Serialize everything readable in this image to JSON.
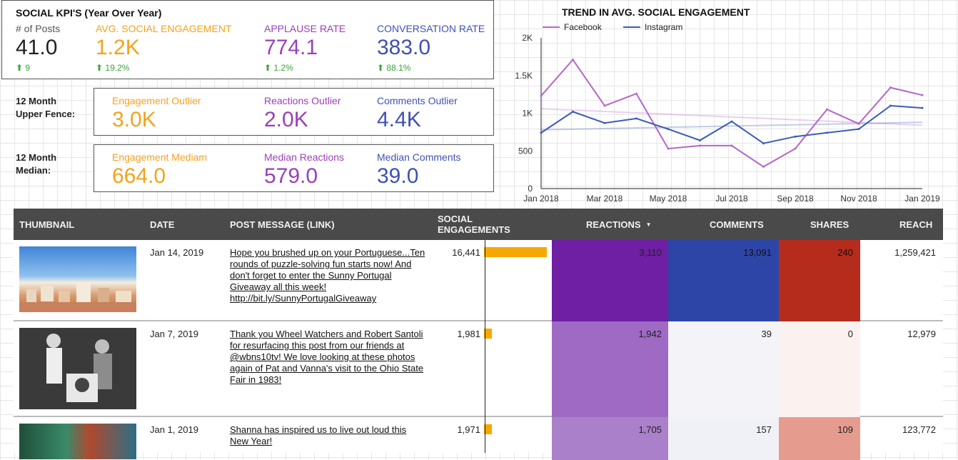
{
  "kpi": {
    "title": "SOCIAL KPI'S (Year Over Year)",
    "metrics": [
      {
        "label": "# of Posts",
        "value": "41.0",
        "delta": "9"
      },
      {
        "label": "AVG. SOCIAL ENGAGEMENT",
        "value": "1.2K",
        "delta": "19.2%"
      },
      {
        "label": "APPLAUSE RATE",
        "value": "774.1",
        "delta": "1.2%"
      },
      {
        "label": "CONVERSATION RATE",
        "value": "383.0",
        "delta": "88.1%"
      }
    ]
  },
  "upper_fence": {
    "label_line1": "12 Month",
    "label_line2": "Upper Fence:",
    "metrics": [
      {
        "label": "Engagement Outlier",
        "value": "3.0K"
      },
      {
        "label": "Reactions Outlier",
        "value": "2.0K"
      },
      {
        "label": "Comments Outlier",
        "value": "4.4K"
      }
    ]
  },
  "median": {
    "label_line1": "12 Month",
    "label_line2": "Median:",
    "metrics": [
      {
        "label": "Engagement Mediam",
        "value": "664.0"
      },
      {
        "label": "Median Reactions",
        "value": "579.0"
      },
      {
        "label": "Median Comments",
        "value": "39.0"
      }
    ]
  },
  "chart_data": {
    "type": "line",
    "title": "TREND IN AVG. SOCIAL ENGAGEMENT",
    "ylim": [
      0,
      2000
    ],
    "yticks": [
      "0",
      "500",
      "1K",
      "1.5K",
      "2K"
    ],
    "xticks": [
      "Jan 2018",
      "Mar 2018",
      "May 2018",
      "Jul 2018",
      "Sep 2018",
      "Nov 2018",
      "Jan 2019"
    ],
    "x": [
      "Jan 2018",
      "Feb 2018",
      "Mar 2018",
      "Apr 2018",
      "May 2018",
      "Jun 2018",
      "Jul 2018",
      "Aug 2018",
      "Sep 2018",
      "Oct 2018",
      "Nov 2018",
      "Dec 2018",
      "Jan 2019"
    ],
    "legend_position": "top-left",
    "series": [
      {
        "name": "Facebook",
        "color": "#b565c8",
        "values": [
          1230,
          1710,
          1100,
          1260,
          530,
          570,
          570,
          290,
          530,
          1050,
          860,
          1340,
          1240
        ],
        "trend": [
          1060,
          840
        ]
      },
      {
        "name": "Instagram",
        "color": "#3b5bb5",
        "values": [
          740,
          1020,
          870,
          930,
          790,
          640,
          890,
          600,
          690,
          740,
          790,
          1100,
          1070
        ],
        "trend": [
          780,
          880
        ]
      }
    ]
  },
  "table": {
    "headers": {
      "thumbnail": "THUMBNAIL",
      "date": "DATE",
      "message": "POST MESSAGE (LINK)",
      "engagements_1": "SOCIAL",
      "engagements_2": "ENGAGEMENTS",
      "reactions": "REACTIONS",
      "sort_arrow": "▼",
      "comments": "COMMENTS",
      "shares": "SHARES",
      "reach": "REACH"
    },
    "rows": [
      {
        "date": "Jan 14, 2019",
        "message": "Hope you brushed up on your Portuguese...Ten rounds of puzzle-solving fun starts now! And don't forget to enter the Sunny Portugal Giveaway all this week! http://bit.ly/SunnyPortugalGiveaway",
        "engagements": "16,441",
        "eng_value": 16441,
        "reactions": "3,110",
        "comments": "13,091",
        "shares": "240",
        "reach": "1,259,421",
        "reactions_color": "#6e1fa3",
        "comments_color": "#2e45a8",
        "shares_color": "#b52b1c"
      },
      {
        "date": "Jan 7, 2019",
        "message": "Thank you Wheel Watchers and Robert Santoli for resurfacing this post from our friends at @wbns10tv! We love looking at these photos again of Pat and Vanna's visit to the Ohio State Fair in 1983!",
        "engagements": "1,981",
        "eng_value": 1981,
        "reactions": "1,942",
        "comments": "39",
        "shares": "0",
        "reach": "12,979",
        "reactions_color": "#9e6ac4",
        "comments_color": "#f3f3f8",
        "shares_color": "#fbf2f0"
      },
      {
        "date": "Jan 1, 2019",
        "message": "Shanna has inspired us to live out loud this New Year!",
        "engagements": "1,971",
        "eng_value": 1971,
        "reactions": "1,705",
        "comments": "157",
        "shares": "109",
        "reach": "123,772",
        "reactions_color": "#ab80ca",
        "comments_color": "#f0f1f7",
        "shares_color": "#e59c8f"
      }
    ]
  }
}
